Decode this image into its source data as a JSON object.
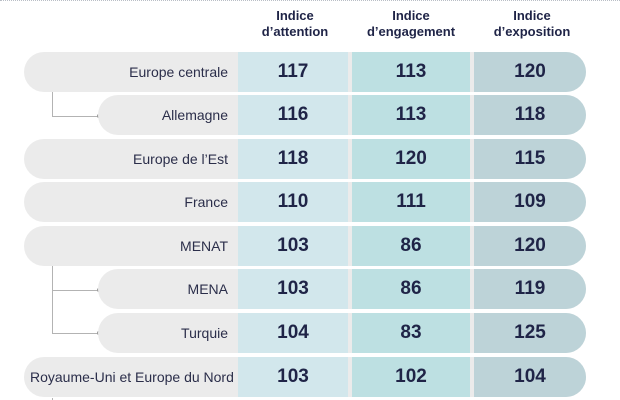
{
  "headers": {
    "attention": "Indice\nd’attention",
    "engagement": "Indice\nd’engagement",
    "exposition": "Indice\nd’exposition"
  },
  "chart_data": {
    "type": "table",
    "columns": [
      "Indice d’attention",
      "Indice d’engagement",
      "Indice d’exposition"
    ],
    "rows": [
      {
        "label": "Europe centrale",
        "values": [
          117,
          113,
          120
        ]
      },
      {
        "label": "Allemagne",
        "values": [
          116,
          113,
          118
        ]
      },
      {
        "label": "Europe de l’Est",
        "values": [
          118,
          120,
          115
        ]
      },
      {
        "label": "France",
        "values": [
          110,
          111,
          109
        ]
      },
      {
        "label": "MENAT",
        "values": [
          103,
          86,
          120
        ]
      },
      {
        "label": "MENA",
        "values": [
          103,
          86,
          119
        ]
      },
      {
        "label": "Turquie",
        "values": [
          104,
          83,
          125
        ]
      },
      {
        "label": "Royaume-Uni et Europe du Nord",
        "values": [
          103,
          102,
          104
        ]
      }
    ]
  },
  "colors": {
    "pill": "#ebebeb",
    "attention_cell": "#d2e7ec",
    "engagement_cell": "#bde0e2",
    "exposition_cell": "#bdd3d8",
    "value_text": "#1f2447"
  }
}
